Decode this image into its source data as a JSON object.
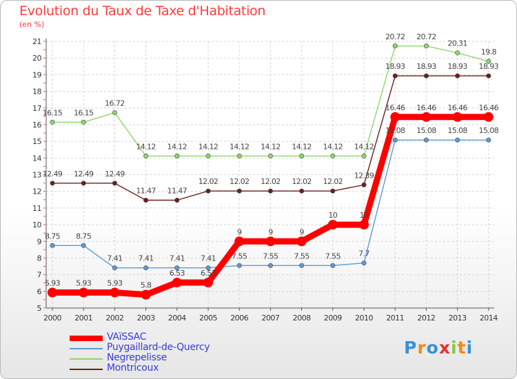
{
  "title": "Evolution du Taux de Taxe d'Habitation",
  "subtitle": "(en %)",
  "logo": {
    "letters": [
      "P",
      "r",
      "o",
      "x",
      "i",
      "t",
      "i"
    ],
    "colors": [
      "#3a8fd8",
      "#f08a1a",
      "#3a8fd8",
      "#e83030",
      "#8bc34a",
      "#f08a1a",
      "#3a8fd8"
    ]
  },
  "chart_data": {
    "type": "line",
    "title": "Evolution du Taux de Taxe d'Habitation",
    "ylabel": "(en %)",
    "xlabel": "",
    "x": [
      "2000",
      "2001",
      "2002",
      "2003",
      "2004",
      "2005",
      "2006",
      "2007",
      "2008",
      "2009",
      "2010",
      "2011",
      "2012",
      "2013",
      "2014"
    ],
    "ylim": [
      5,
      21
    ],
    "yticks": [
      "5",
      "6",
      "7",
      "8",
      "9",
      "10",
      "11",
      "12",
      "13",
      "14",
      "15",
      "16",
      "17",
      "18",
      "19",
      "20",
      "21"
    ],
    "grid": true,
    "legend_position": "bottom-left",
    "series": [
      {
        "name": "VAïSSAC",
        "color": "#ff0000",
        "values": [
          5.93,
          5.93,
          5.93,
          5.8,
          6.53,
          6.53,
          9,
          9,
          9,
          10,
          10,
          16.46,
          16.46,
          16.46,
          16.46
        ],
        "labels": [
          "5.93",
          "5.93",
          "5.93",
          "5.8",
          "6.53",
          "6.53",
          "9",
          "9",
          "9",
          "10",
          "10",
          "16.46",
          "16.46",
          "16.46",
          "16.46"
        ]
      },
      {
        "name": "Puygaillard-de-Quercy",
        "color": "#5b9bd5",
        "values": [
          8.75,
          8.75,
          7.41,
          7.41,
          7.41,
          7.41,
          7.55,
          7.55,
          7.55,
          7.55,
          7.7,
          15.08,
          15.08,
          15.08,
          15.08
        ],
        "labels": [
          "8.75",
          "8.75",
          "7.41",
          "7.41",
          "7.41",
          "7.41",
          "7.55",
          "7.55",
          "7.55",
          "7.55",
          "7.7",
          "15.08",
          "15.08",
          "15.08",
          "15.08"
        ]
      },
      {
        "name": "Negrepelisse",
        "color": "#8fd66b",
        "values": [
          16.15,
          16.15,
          16.72,
          14.12,
          14.12,
          14.12,
          14.12,
          14.12,
          14.12,
          14.12,
          14.12,
          20.72,
          20.72,
          20.31,
          19.8
        ],
        "labels": [
          "16.15",
          "16.15",
          "16.72",
          "14.12",
          "14.12",
          "14.12",
          "14.12",
          "14.12",
          "14.12",
          "14.12",
          "14.12",
          "20.72",
          "20.72",
          "20.31",
          "19.8"
        ]
      },
      {
        "name": "Montricoux",
        "color": "#6b1f1f",
        "values": [
          12.49,
          12.49,
          12.49,
          11.47,
          11.47,
          12.02,
          12.02,
          12.02,
          12.02,
          12.02,
          12.39,
          18.93,
          18.93,
          18.93,
          18.93
        ],
        "labels": [
          "12.49",
          "12.49",
          "12.49",
          "11.47",
          "11.47",
          "12.02",
          "12.02",
          "12.02",
          "12.02",
          "12.02",
          "12.39",
          "18.93",
          "18.93",
          "18.93",
          "18.93"
        ]
      }
    ]
  }
}
